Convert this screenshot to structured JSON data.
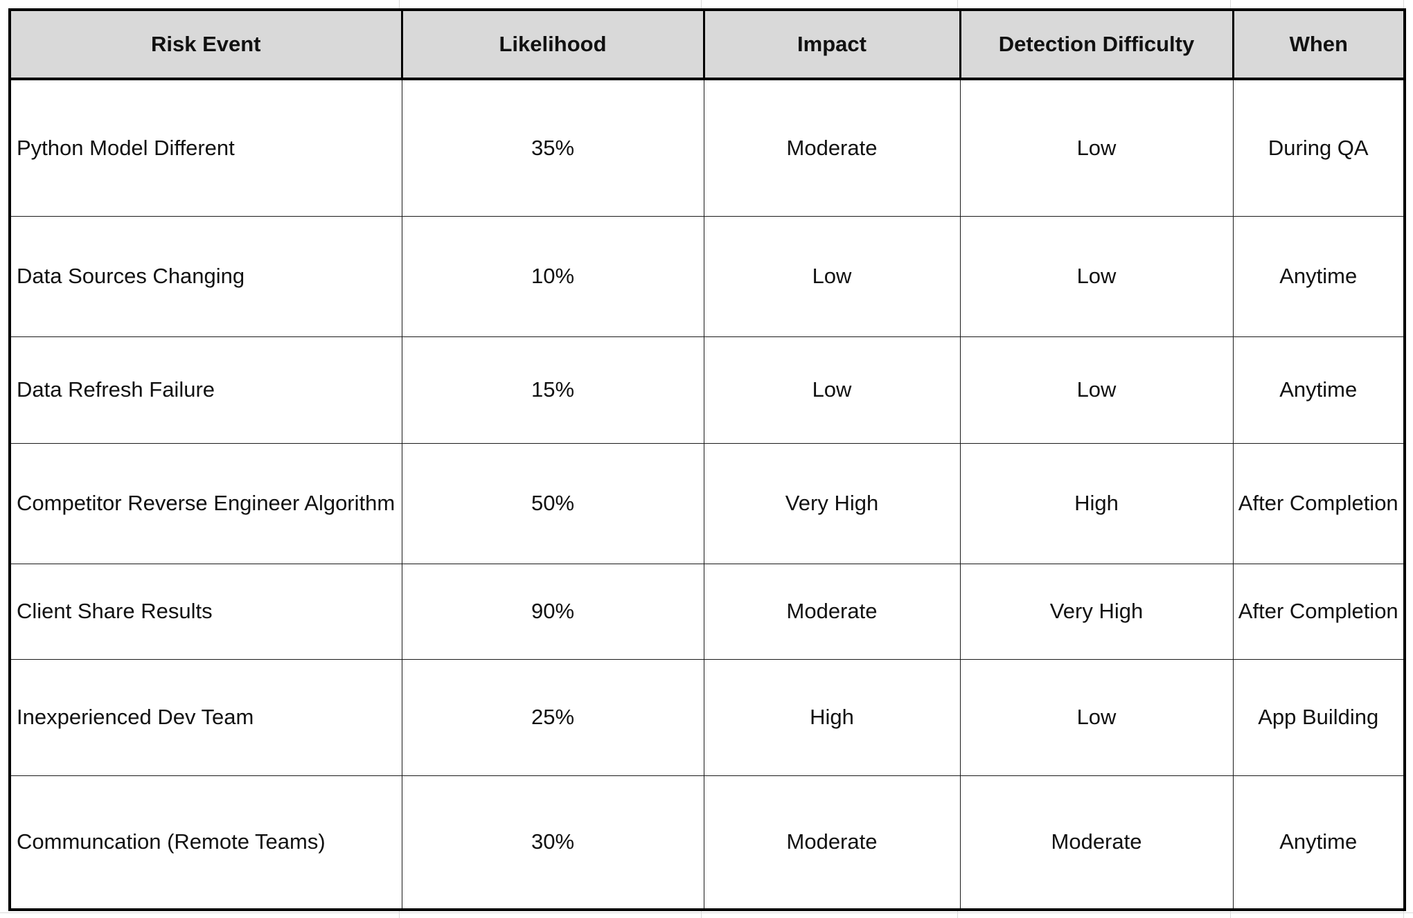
{
  "table": {
    "headers": [
      "Risk Event",
      "Likelihood",
      "Impact",
      "Detection Difficulty",
      "When"
    ],
    "rows": [
      [
        "Python Model Different",
        "35%",
        "Moderate",
        "Low",
        "During QA"
      ],
      [
        "Data Sources Changing",
        "10%",
        "Low",
        "Low",
        "Anytime"
      ],
      [
        "Data Refresh Failure",
        "15%",
        "Low",
        "Low",
        "Anytime"
      ],
      [
        "Competitor Reverse Engineer Algorithm",
        "50%",
        "Very High",
        "High",
        "After Completion"
      ],
      [
        "Client Share Results",
        "90%",
        "Moderate",
        "Very High",
        "After Completion"
      ],
      [
        "Inexperienced Dev Team",
        "25%",
        "High",
        "Low",
        "App Building"
      ],
      [
        "Communcation (Remote Teams)",
        "30%",
        "Moderate",
        "Moderate",
        "Anytime"
      ]
    ]
  },
  "colors": {
    "header_background": "#d9d9d9",
    "border": "#000000",
    "cell_background": "#ffffff"
  }
}
